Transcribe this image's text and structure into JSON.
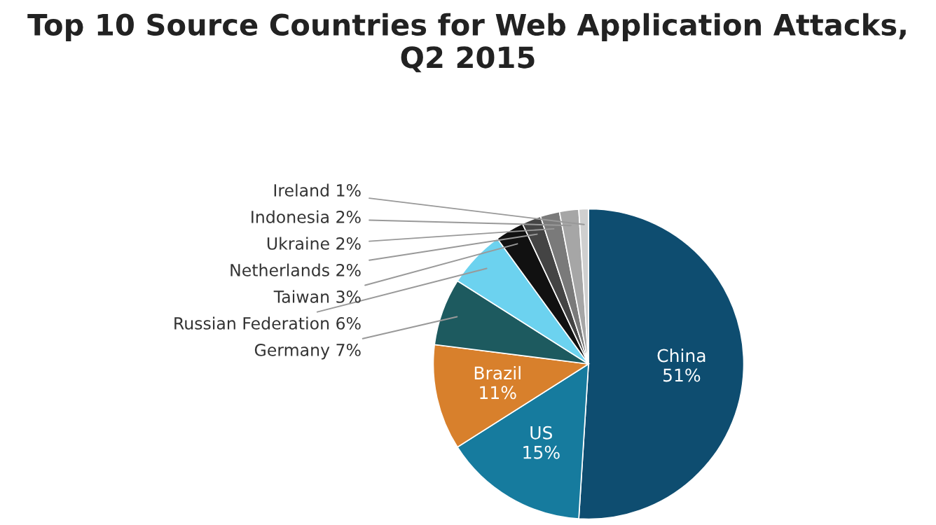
{
  "chart_data": {
    "type": "pie",
    "title": "Top 10 Source Countries for Web Application Attacks,\nQ2 2015",
    "categories": [
      "China",
      "US",
      "Brazil",
      "Germany",
      "Russian Federation",
      "Taiwan",
      "Netherlands",
      "Ukraine",
      "Indonesia",
      "Ireland"
    ],
    "values": [
      51,
      15,
      11,
      7,
      6,
      3,
      2,
      2,
      2,
      1
    ],
    "value_labels": [
      "51%",
      "15%",
      "11%",
      "7%",
      "6%",
      "3%",
      "2%",
      "2%",
      "2%",
      "1%"
    ],
    "colors": [
      "#0e4d70",
      "#167b9e",
      "#d8802c",
      "#1d5a5f",
      "#6cd2ef",
      "#111111",
      "#444444",
      "#7a7a7a",
      "#a6a6a6",
      "#cfcfcf"
    ],
    "legend": false
  }
}
